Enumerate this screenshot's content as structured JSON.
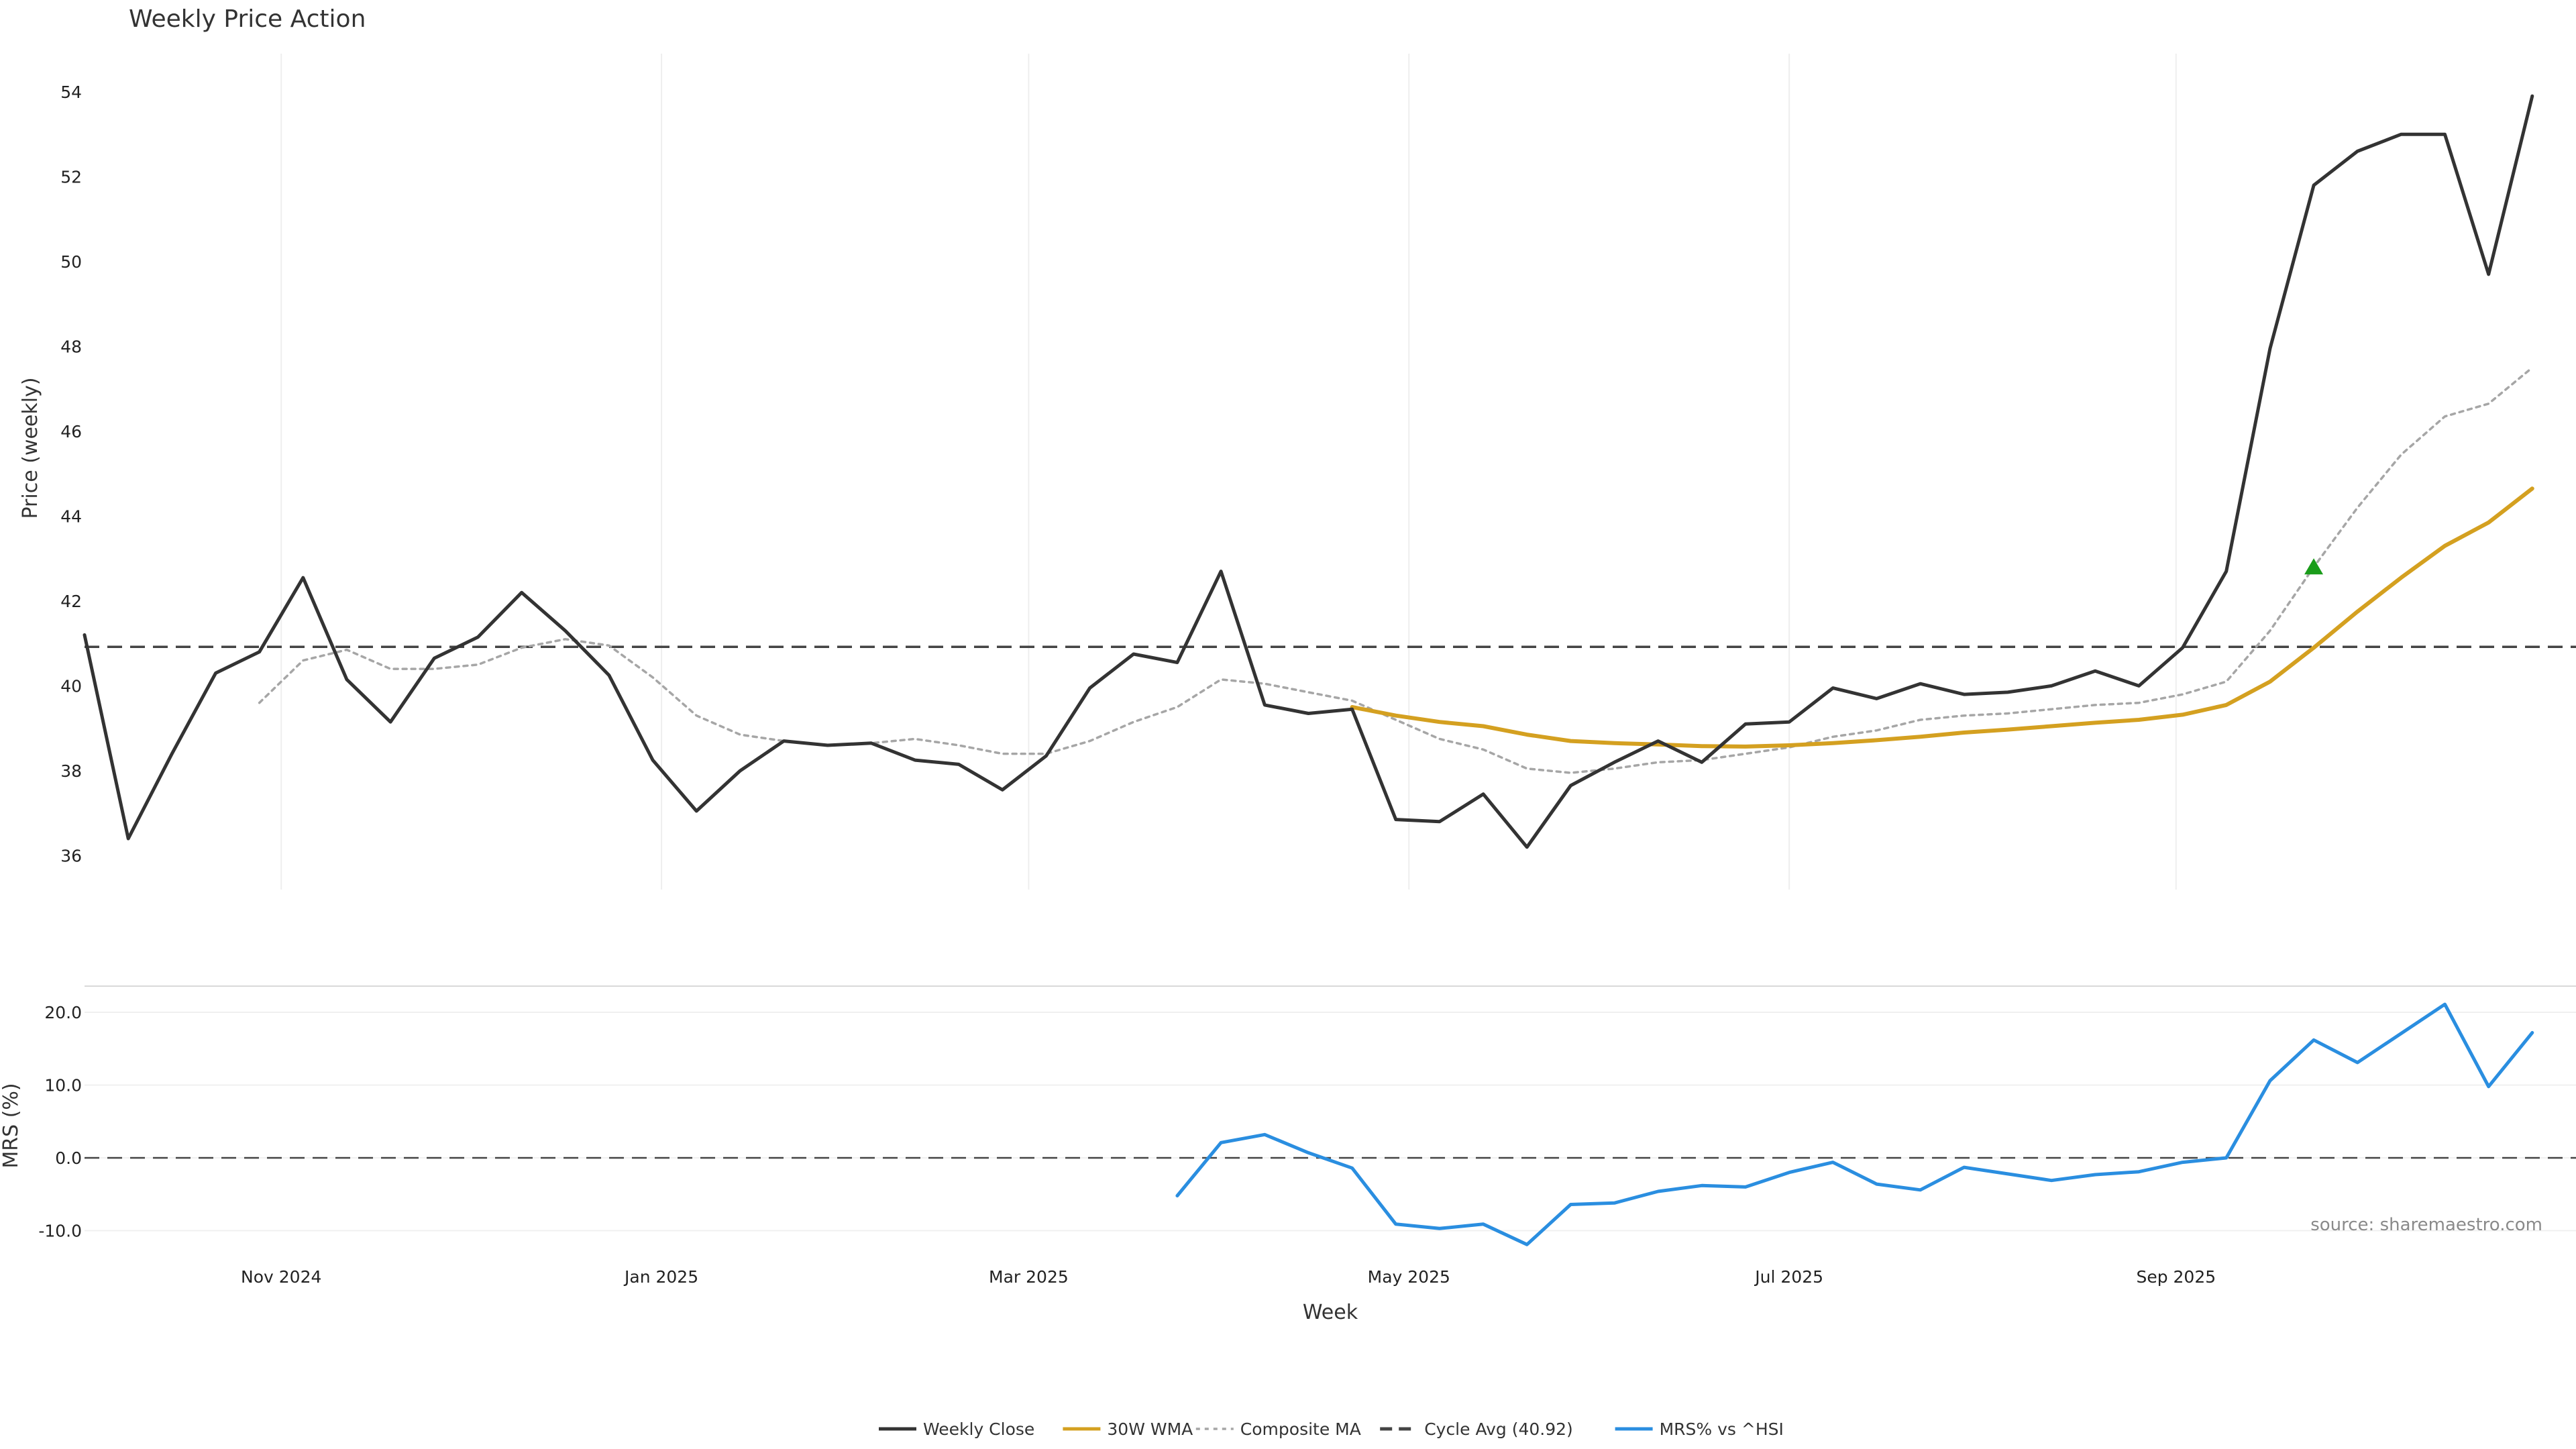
{
  "chart_data": {
    "type": "line",
    "title": "Weekly Price Action",
    "xlabel": "Week",
    "source_note": "source: sharemaestro.com",
    "x_ticks": [
      {
        "label": "Nov 2024",
        "week": 4.5
      },
      {
        "label": "Jan 2025",
        "week": 13.2
      },
      {
        "label": "Mar 2025",
        "week": 21.6
      },
      {
        "label": "May 2025",
        "week": 30.3
      },
      {
        "label": "Jul 2025",
        "week": 39
      },
      {
        "label": "Sep 2025",
        "week": 47.85
      }
    ],
    "x_range": [
      0,
      57
    ],
    "price_panel": {
      "ylabel": "Price (weekly)",
      "ylim": [
        35.2,
        54.9
      ],
      "yticks": [
        36,
        38,
        40,
        42,
        44,
        46,
        48,
        50,
        52,
        54
      ],
      "cycle_avg": 40.92,
      "series": [
        {
          "name": "Weekly Close",
          "color": "#333333",
          "style": "solid",
          "start": 0,
          "values": [
            41.2,
            36.4,
            38.4,
            40.3,
            40.8,
            42.55,
            40.15,
            39.15,
            40.65,
            41.15,
            42.2,
            41.3,
            40.25,
            38.25,
            37.05,
            38,
            38.7,
            38.6,
            38.65,
            38.25,
            38.15,
            37.55,
            38.35,
            39.95,
            40.75,
            40.55,
            42.7,
            39.55,
            39.35,
            39.45,
            36.85,
            36.8,
            37.45,
            36.2,
            37.65,
            38.2,
            38.7,
            38.2,
            39.1,
            39.15,
            39.95,
            39.7,
            40.05,
            39.8,
            39.85,
            40,
            40.35,
            40,
            40.9,
            42.7,
            47.95,
            51.8,
            52.6,
            53,
            53,
            49.7,
            53.9
          ]
        },
        {
          "name": "30W WMA",
          "color": "#d4a020",
          "style": "solid",
          "start": 29,
          "values": [
            39.5,
            39.3,
            39.15,
            39.05,
            38.85,
            38.7,
            38.65,
            38.62,
            38.58,
            38.57,
            38.6,
            38.65,
            38.72,
            38.8,
            38.9,
            38.97,
            39.05,
            39.13,
            39.2,
            39.32,
            39.55,
            40.1,
            40.9,
            41.75,
            42.55,
            43.3,
            43.85,
            44.65
          ]
        },
        {
          "name": "Composite MA",
          "color": "#a6a6a6",
          "style": "dotted",
          "start": 4,
          "values": [
            39.6,
            40.6,
            40.85,
            40.4,
            40.4,
            40.5,
            40.9,
            41.1,
            40.95,
            40.2,
            39.3,
            38.85,
            38.7,
            38.6,
            38.65,
            38.75,
            38.6,
            38.4,
            38.4,
            38.7,
            39.15,
            39.5,
            40.15,
            40.05,
            39.85,
            39.65,
            39.2,
            38.75,
            38.5,
            38.05,
            37.95,
            38.05,
            38.2,
            38.25,
            38.4,
            38.55,
            38.8,
            38.95,
            39.2,
            39.3,
            39.35,
            39.45,
            39.55,
            39.6,
            39.8,
            40.1,
            41.3,
            42.8,
            44.2,
            45.45,
            46.35,
            46.65,
            47.5
          ]
        },
        {
          "name": "Cycle Avg (40.92)",
          "color": "#444444",
          "style": "dashed",
          "constant": 40.92
        }
      ],
      "signal_marker": {
        "week": 51,
        "value": 42.8,
        "color": "#1a9c1a",
        "shape": "triangle-up"
      }
    },
    "mrs_panel": {
      "ylabel": "MRS (%)",
      "ylim": [
        -12.9,
        23.6
      ],
      "yticks": [
        -10,
        0,
        10,
        20
      ],
      "ytick_labels": [
        "-10.0",
        "0.0",
        "10.0",
        "20.0"
      ],
      "zero_line": 0,
      "series": [
        {
          "name": "MRS% vs ^HSI",
          "color": "#2a8ee0",
          "style": "solid",
          "start": 25,
          "values": [
            -5.2,
            2.1,
            3.2,
            0.7,
            -1.4,
            -9.1,
            -9.7,
            -9.1,
            -11.9,
            -6.4,
            -6.2,
            -4.6,
            -3.8,
            -4,
            -2,
            -0.6,
            -3.6,
            -4.4,
            -1.3,
            -2.2,
            -3.1,
            -2.3,
            -1.9,
            -0.6,
            0,
            10.6,
            16.2,
            13.1,
            17.1,
            21.1,
            9.8,
            17.2
          ]
        }
      ]
    },
    "legend": {
      "placement": "bottom-center",
      "entries": [
        {
          "label": "Weekly Close",
          "color": "#333333",
          "style": "solid"
        },
        {
          "label": "30W WMA",
          "color": "#d4a020",
          "style": "solid"
        },
        {
          "label": "Composite MA",
          "color": "#a6a6a6",
          "style": "dotted"
        },
        {
          "label": "Cycle Avg (40.92)",
          "color": "#444444",
          "style": "dashed"
        },
        {
          "label": "MRS% vs ^HSI",
          "color": "#2a8ee0",
          "style": "solid"
        }
      ]
    }
  }
}
